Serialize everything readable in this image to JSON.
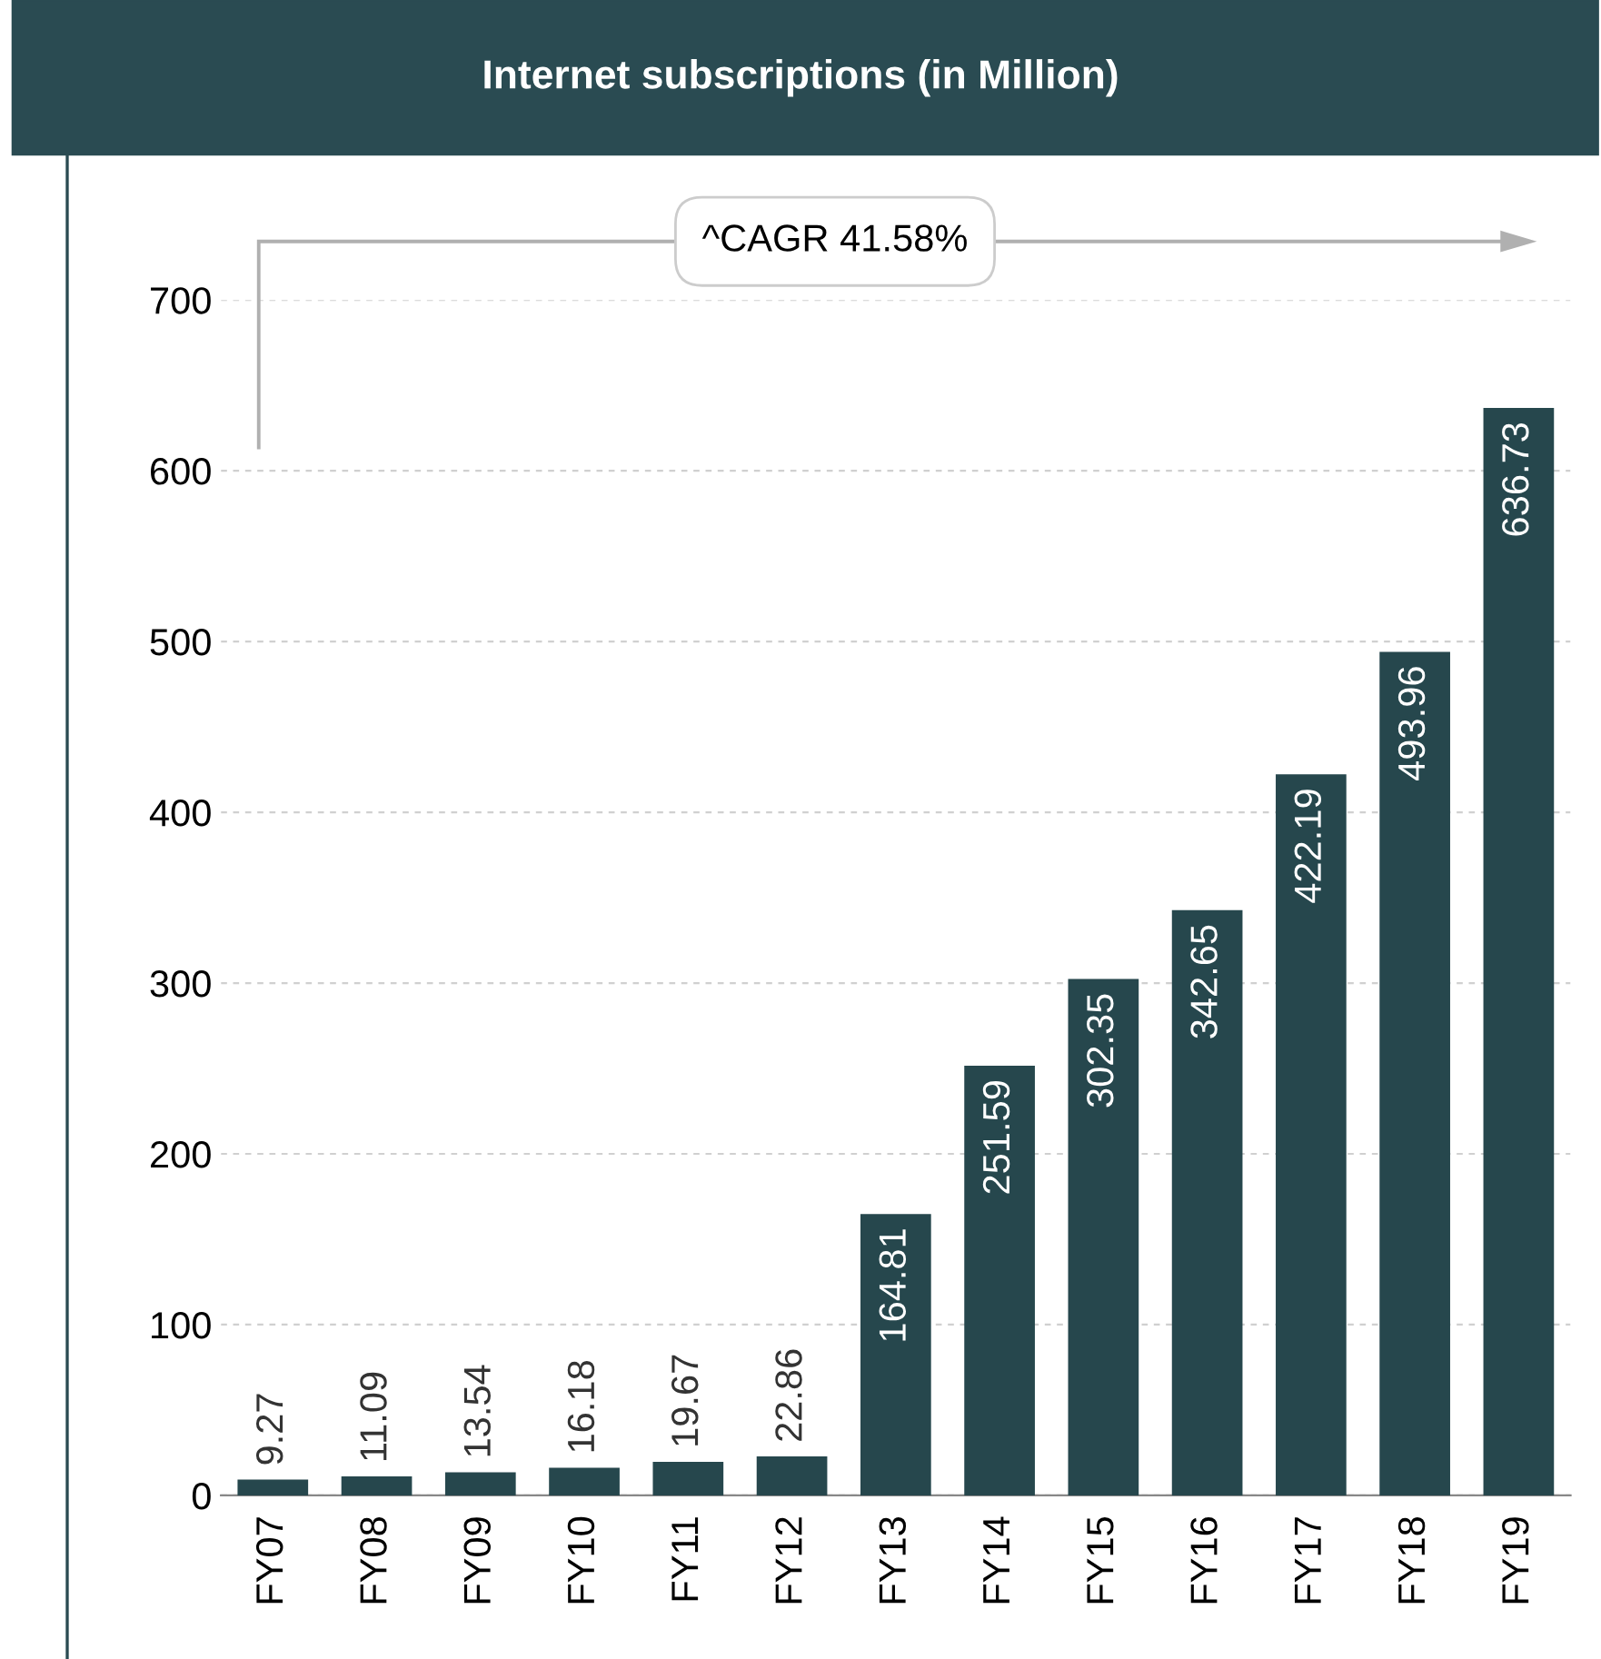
{
  "chart_data": {
    "type": "bar",
    "title": "Internet subscriptions (in Million)",
    "categories": [
      "FY07",
      "FY08",
      "FY09",
      "FY10",
      "FY11",
      "FY12",
      "FY13",
      "FY14",
      "FY15",
      "FY16",
      "FY17",
      "FY18",
      "FY19"
    ],
    "values": [
      9.27,
      11.09,
      13.54,
      16.18,
      19.67,
      22.86,
      164.81,
      251.59,
      302.35,
      342.65,
      422.19,
      493.96,
      636.73
    ],
    "color": "#26474d",
    "ylim": [
      0,
      700
    ],
    "yticks": [
      0,
      100,
      200,
      300,
      400,
      500,
      600,
      700
    ],
    "grid": "y",
    "data_labels": true,
    "annotations": [
      "^CAGR 41.58%"
    ]
  }
}
